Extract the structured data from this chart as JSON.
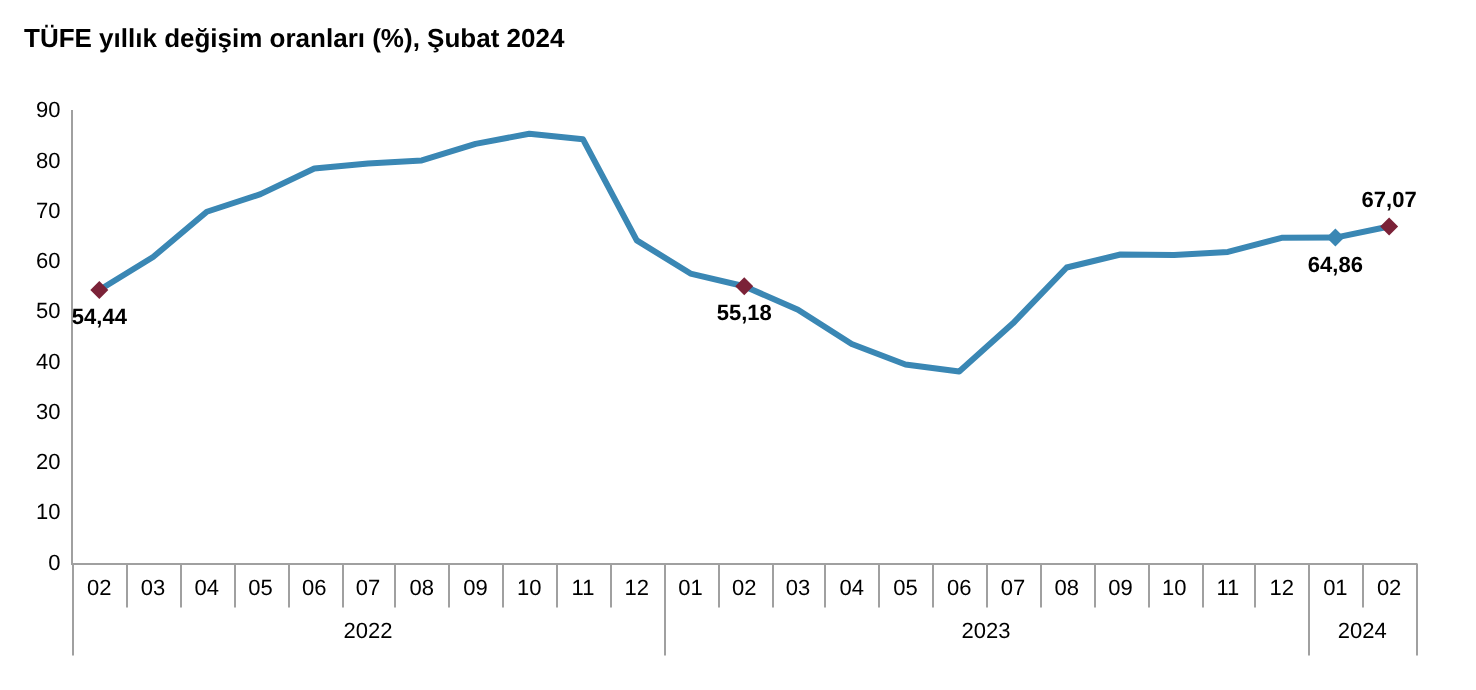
{
  "chart_data": {
    "type": "line",
    "title": "TÜFE yıllık değişim oranları (%), Şubat 2024",
    "categories": [
      "02",
      "03",
      "04",
      "05",
      "06",
      "07",
      "08",
      "09",
      "10",
      "11",
      "12",
      "01",
      "02",
      "03",
      "04",
      "05",
      "06",
      "07",
      "08",
      "09",
      "10",
      "11",
      "12",
      "01",
      "02"
    ],
    "series": [
      {
        "color": "#3a87b4",
        "values": [
          54.44,
          61,
          70,
          73.5,
          78.6,
          79.6,
          80.2,
          83.5,
          85.5,
          84.4,
          64.3,
          57.7,
          55.18,
          50.5,
          43.7,
          39.6,
          38.2,
          47.8,
          58.9,
          61.5,
          61.4,
          62,
          64.8,
          64.86,
          67.07
        ],
        "value_labels": [
          "54,44",
          null,
          null,
          null,
          null,
          null,
          null,
          null,
          null,
          null,
          null,
          null,
          "55,18",
          null,
          null,
          null,
          null,
          null,
          null,
          null,
          null,
          null,
          null,
          "64,86",
          "67,07"
        ],
        "colors": [
          "#7b2238",
          null,
          null,
          null,
          null,
          null,
          null,
          null,
          null,
          null,
          null,
          null,
          "#7b2238",
          null,
          null,
          null,
          null,
          null,
          null,
          null,
          null,
          null,
          null,
          "#3a87b4",
          "#7b2238"
        ]
      }
    ],
    "annotations": [
      "2022",
      "2023",
      "2024"
    ],
    "ylim": [
      0,
      90
    ],
    "yticks": [
      0,
      10,
      20,
      30,
      40,
      50,
      60,
      70,
      80,
      90
    ],
    "grid": false,
    "legend": false,
    "line_style": "solid"
  }
}
